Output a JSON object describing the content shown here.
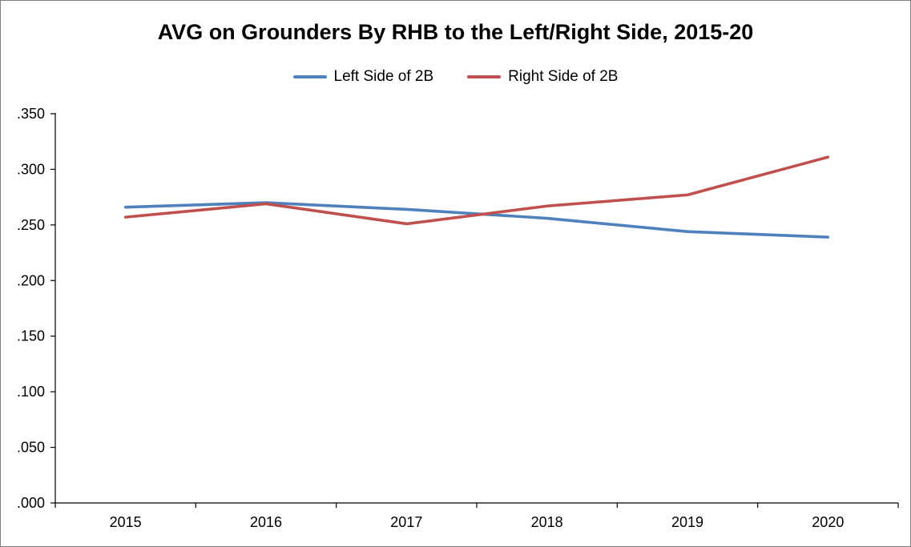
{
  "title": "AVG on Grounders By RHB to the Left/Right Side, 2015-20",
  "legend": {
    "items": [
      {
        "label": "Left Side of 2B",
        "color": "#4f81bd"
      },
      {
        "label": "Right Side of 2B",
        "color": "#c0504d"
      }
    ]
  },
  "chart_data": {
    "type": "line",
    "title": "AVG on Grounders By RHB to the Left/Right Side, 2015-20",
    "categories": [
      "2015",
      "2016",
      "2017",
      "2018",
      "2019",
      "2020"
    ],
    "series": [
      {
        "name": "Left Side of 2B",
        "color": "#4f81bd",
        "values": [
          0.266,
          0.27,
          0.264,
          0.256,
          0.244,
          0.239
        ]
      },
      {
        "name": "Right Side of 2B",
        "color": "#c0504d",
        "values": [
          0.257,
          0.269,
          0.251,
          0.267,
          0.277,
          0.311
        ]
      }
    ],
    "xlabel": "",
    "ylabel": "",
    "ylim": [
      0.0,
      0.35
    ],
    "yticks": [
      ".000",
      ".050",
      ".100",
      ".150",
      ".200",
      ".250",
      ".300",
      ".350"
    ],
    "ytick_values": [
      0.0,
      0.05,
      0.1,
      0.15,
      0.2,
      0.25,
      0.3,
      0.35
    ],
    "grid": false,
    "legend_position": "top"
  }
}
